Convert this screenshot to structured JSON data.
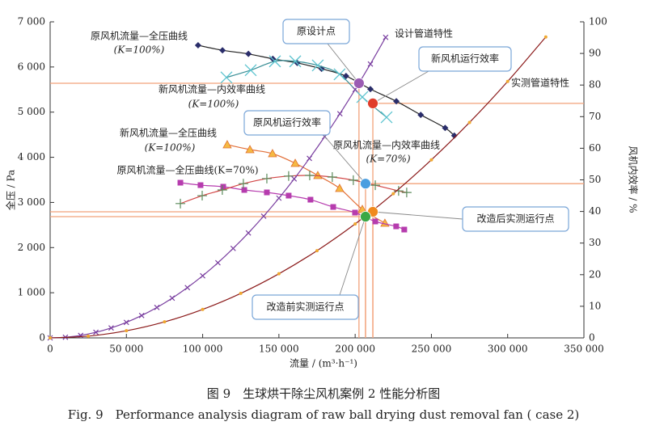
{
  "chart_data": {
    "type": "line",
    "title": "图 9　生球烘干除尘风机案例 2 性能分析图",
    "subtitle": "Fig. 9　Performance analysis diagram of raw ball drying dust removal fan ( case 2)",
    "xlabel": "流量 / (m³·h⁻¹)",
    "ylabel": "全压 / Pa",
    "y2label": "风机内效率 / %",
    "xlim": [
      0,
      350000
    ],
    "xticks": [
      0,
      {
        "value": 50000,
        "label": "50 000"
      },
      {
        "value": 100000,
        "label": "100 000"
      },
      {
        "value": 150000,
        "label": "150 000"
      },
      {
        "value": 200000,
        "label": "200 000"
      },
      {
        "value": 250000,
        "label": "250 000"
      },
      {
        "value": 300000,
        "label": "300 000"
      },
      {
        "value": 350000,
        "label": "350 000"
      }
    ],
    "ylim": [
      0,
      7000
    ],
    "yticks": [
      0,
      {
        "value": 1000,
        "label": "1 000"
      },
      {
        "value": 2000,
        "label": "2 000"
      },
      {
        "value": 3000,
        "label": "3 000"
      },
      {
        "value": 4000,
        "label": "4 000"
      },
      {
        "value": 5000,
        "label": "5 000"
      },
      {
        "value": 6000,
        "label": "6 000"
      },
      {
        "value": 7000,
        "label": "7 000"
      }
    ],
    "y2lim": [
      0,
      100
    ],
    "y2ticks": [
      0,
      10,
      20,
      30,
      40,
      50,
      60,
      70,
      80,
      90,
      100
    ],
    "series": [
      {
        "name": "原风机流量—全压曲线",
        "label_line2": "(K=100%)",
        "axis": "y",
        "marker": "diamond",
        "color": "#2a2d6a",
        "line_color": "#222222",
        "x": [
          97000,
          113000,
          130000,
          146000,
          162000,
          178000,
          194000,
          210000,
          227000,
          243000,
          259000,
          265000
        ],
        "values": [
          6480,
          6370,
          6290,
          6180,
          6090,
          5960,
          5800,
          5510,
          5240,
          4940,
          4650,
          4480
        ]
      },
      {
        "name": "新风机流量—内效率曲线",
        "label_line2": "(K=100%)",
        "axis": "y2",
        "marker": "x",
        "color": "#5cc3cf",
        "line_color": "#3b8f96",
        "x": [
          115600,
          131500,
          147400,
          160700,
          175500,
          189800,
          204700,
          220600
        ],
        "values": [
          82.4,
          84.7,
          87.5,
          87.5,
          86.2,
          83.4,
          76.2,
          69.8
        ]
      },
      {
        "name": "新风机流量—全压曲线",
        "label_line2": "(K=100%)",
        "axis": "y",
        "marker": "triangle",
        "color": "#f5b942",
        "line_color": "#e2703a",
        "x": [
          116100,
          131000,
          145800,
          160700,
          175500,
          189800,
          204700,
          219500
        ],
        "values": [
          4279,
          4171,
          4082,
          3867,
          3598,
          3312,
          2847,
          2542
        ]
      },
      {
        "name": "原风机流量—全压曲线(K=70%)",
        "axis": "y",
        "marker": "square",
        "color": "#b63cae",
        "line_color": "#b63cae",
        "x": [
          85400,
          98600,
          113500,
          127300,
          142100,
          156400,
          170700,
          185600,
          199900,
          213200,
          226900,
          232200
        ],
        "values": [
          3437,
          3383,
          3348,
          3276,
          3222,
          3151,
          3061,
          2900,
          2775,
          2578,
          2470,
          2399
        ]
      },
      {
        "name": "原风机流量—内效率曲线",
        "label_line2": "(K=70%)",
        "axis": "y2",
        "marker": "plus",
        "color": "#5a8a5a",
        "line_color": "#d24545",
        "x": [
          85400,
          99700,
          112900,
          126700,
          142100,
          156400,
          170200,
          185000,
          198800,
          213200,
          228500,
          233800
        ],
        "values": [
          42.5,
          45.0,
          46.8,
          48.8,
          50.4,
          51.2,
          51.4,
          50.9,
          49.9,
          48.3,
          46.5,
          46.0
        ]
      },
      {
        "name": "设计管道特性",
        "axis": "y",
        "marker": "cross",
        "color": "#7a3fa0",
        "line_color": "#7a3fa0",
        "x": [
          0,
          10000,
          20000,
          30000,
          40000,
          50000,
          60000,
          70000,
          80000,
          90000,
          100000,
          110000,
          120000,
          130000,
          140000,
          150000,
          160000,
          170000,
          180000,
          190000,
          200000,
          210000,
          220000
        ],
        "values": [
          0,
          14,
          55,
          124,
          220,
          344,
          495,
          674,
          880,
          1114,
          1375,
          1664,
          1981,
          2324,
          2696,
          3095,
          3521,
          3975,
          4456,
          4965,
          5502,
          6065,
          6657
        ]
      },
      {
        "name": "实测管道特性",
        "axis": "y",
        "marker": "dot",
        "color": "#f0a830",
        "line_color": "#8b1a1a",
        "x": [
          0,
          25000,
          50000,
          75000,
          100000,
          125000,
          150000,
          175000,
          200000,
          225000,
          250000,
          275000,
          300000,
          325000
        ],
        "values": [
          0,
          39,
          158,
          355,
          631,
          986,
          1420,
          1932,
          2524,
          3194,
          3944,
          4772,
          5679,
          6665
        ]
      }
    ],
    "points": [
      {
        "label": "原设计点",
        "x": 202500,
        "value": 5640,
        "axis": "y",
        "color": "#9b5cb3"
      },
      {
        "label": "新风机运行效率",
        "x": 211600,
        "value": 74.2,
        "axis": "y2",
        "color": "#e03c2a"
      },
      {
        "label": "原风机运行效率",
        "x": 206800,
        "value": 48.8,
        "axis": "y2",
        "color": "#4a9ee0"
      },
      {
        "label": "改造后实测运行点",
        "x": 211600,
        "value": 2793,
        "axis": "y",
        "color": "#f08a1e"
      },
      {
        "label": "改造前实测运行点",
        "x": 206800,
        "value": 2685,
        "axis": "y",
        "color": "#3aa845"
      }
    ]
  }
}
